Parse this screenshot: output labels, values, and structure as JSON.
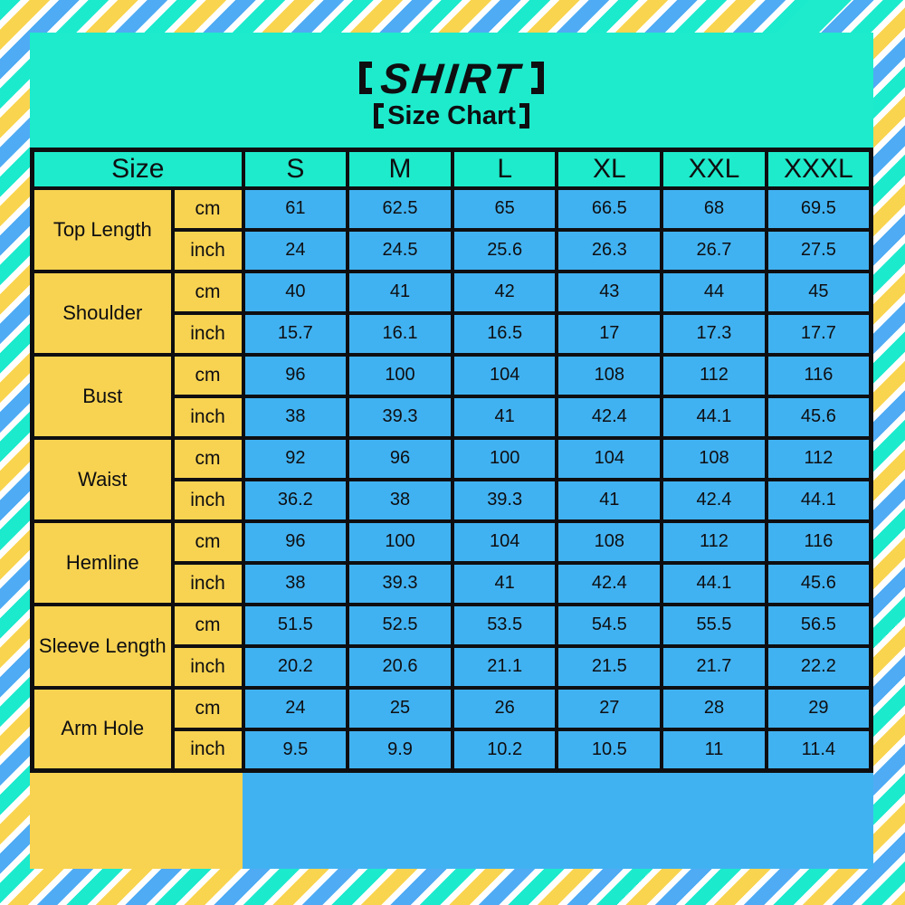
{
  "title": {
    "main": "SHIRT",
    "sub": "Size Chart"
  },
  "colors": {
    "turquoise": "#1DEBCC",
    "header_teal": "#1EEBCB",
    "label_yellow": "#F8D351",
    "cell_blue": "#41B2F1",
    "stripe_yellow": "#F9D44F",
    "stripe_blue": "#4FABF4",
    "stripe_white": "#FFFFFF",
    "border_black": "#0E0E11"
  },
  "chart_data": {
    "type": "table",
    "title": "SHIRT",
    "subtitle": "Size Chart",
    "corner_label": "Size",
    "sizes": [
      "S",
      "M",
      "L",
      "XL",
      "XXL",
      "XXXL"
    ],
    "unit_cm": "cm",
    "unit_inch": "inch",
    "rows": [
      {
        "label": "Top Length",
        "cm": [
          "61",
          "62.5",
          "65",
          "66.5",
          "68",
          "69.5"
        ],
        "inch": [
          "24",
          "24.5",
          "25.6",
          "26.3",
          "26.7",
          "27.5"
        ]
      },
      {
        "label": "Shoulder",
        "cm": [
          "40",
          "41",
          "42",
          "43",
          "44",
          "45"
        ],
        "inch": [
          "15.7",
          "16.1",
          "16.5",
          "17",
          "17.3",
          "17.7"
        ]
      },
      {
        "label": "Bust",
        "cm": [
          "96",
          "100",
          "104",
          "108",
          "112",
          "116"
        ],
        "inch": [
          "38",
          "39.3",
          "41",
          "42.4",
          "44.1",
          "45.6"
        ]
      },
      {
        "label": "Waist",
        "cm": [
          "92",
          "96",
          "100",
          "104",
          "108",
          "112"
        ],
        "inch": [
          "36.2",
          "38",
          "39.3",
          "41",
          "42.4",
          "44.1"
        ]
      },
      {
        "label": "Hemline",
        "cm": [
          "96",
          "100",
          "104",
          "108",
          "112",
          "116"
        ],
        "inch": [
          "38",
          "39.3",
          "41",
          "42.4",
          "44.1",
          "45.6"
        ]
      },
      {
        "label": "Sleeve Length",
        "cm": [
          "51.5",
          "52.5",
          "53.5",
          "54.5",
          "55.5",
          "56.5"
        ],
        "inch": [
          "20.2",
          "20.6",
          "21.1",
          "21.5",
          "21.7",
          "22.2"
        ]
      },
      {
        "label": "Arm Hole",
        "cm": [
          "24",
          "25",
          "26",
          "27",
          "28",
          "29"
        ],
        "inch": [
          "9.5",
          "9.9",
          "10.2",
          "10.5",
          "11",
          "11.4"
        ]
      }
    ]
  }
}
